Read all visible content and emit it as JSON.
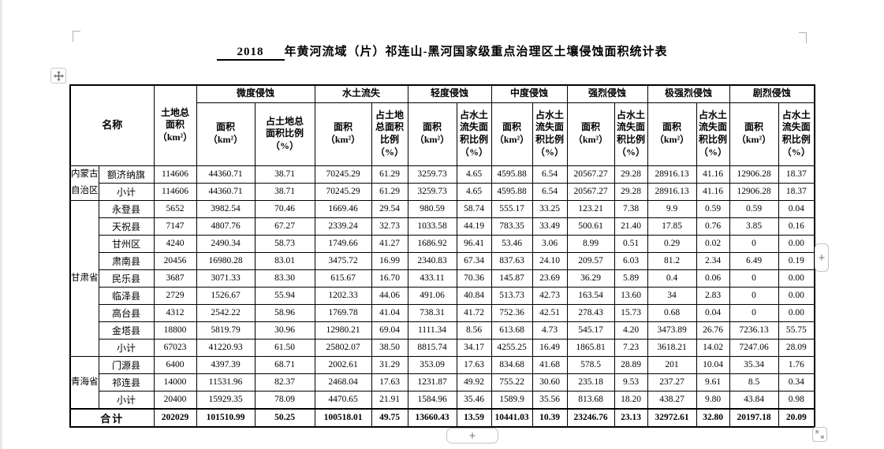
{
  "document": {
    "title_blank": "2018",
    "title_text": "年黄河流域（片）祁连山-黑河国家级重点治理区土壤侵蚀面积统计表"
  },
  "controls": {
    "add_column_label": "+",
    "add_row_label": "+",
    "move_handle_icon": "move-cross-arrows",
    "resize_handle_icon": "diagonal-resize-arrows"
  },
  "table": {
    "header": {
      "name_label": "名称",
      "land_label": "土地总\n面积\n（km²）",
      "groups": [
        {
          "label": "微度侵蚀",
          "area": "面积\n（km²）",
          "ratio": "占土地总\n面积比例\n（%）"
        },
        {
          "label": "水土流失",
          "area": "面积\n（km²）",
          "ratio": "占土地\n总面积\n比例\n（%）"
        },
        {
          "label": "轻度侵蚀",
          "area": "面积\n（km²）",
          "ratio": "占水土\n流失面\n积比例\n（%）"
        },
        {
          "label": "中度侵蚀",
          "area": "面积\n（km²）",
          "ratio": "占水土\n流失面\n积比例\n（%）"
        },
        {
          "label": "强烈侵蚀",
          "area": "面积\n（km²）",
          "ratio": "占水土\n流失面\n积比例\n（%）"
        },
        {
          "label": "极强烈侵蚀",
          "area": "面积\n（km²）",
          "ratio": "占水土\n流失面\n积比例\n（%）"
        },
        {
          "label": "剧烈侵蚀",
          "area": "面积\n（km²）",
          "ratio": "占水土\n流失面\n积比例\n（%）"
        }
      ]
    },
    "body": [
      {
        "province": "内蒙古\n自治区",
        "province_rowspan": 2,
        "county": "额济纳旗",
        "values": [
          "114606",
          "44360.71",
          "38.71",
          "70245.29",
          "61.29",
          "3259.73",
          "4.65",
          "4595.88",
          "6.54",
          "20567.27",
          "29.28",
          "28916.13",
          "41.16",
          "12906.28",
          "18.37"
        ]
      },
      {
        "county": "小计",
        "values": [
          "114606",
          "44360.71",
          "38.71",
          "70245.29",
          "61.29",
          "3259.73",
          "4.65",
          "4595.88",
          "6.54",
          "20567.27",
          "29.28",
          "28916.13",
          "41.16",
          "12906.28",
          "18.37"
        ]
      },
      {
        "province": "甘肃省",
        "province_rowspan": 9,
        "county": "永登县",
        "values": [
          "5652",
          "3982.54",
          "70.46",
          "1669.46",
          "29.54",
          "980.59",
          "58.74",
          "555.17",
          "33.25",
          "123.21",
          "7.38",
          "9.9",
          "0.59",
          "0.59",
          "0.04"
        ]
      },
      {
        "county": "天祝县",
        "values": [
          "7147",
          "4807.76",
          "67.27",
          "2339.24",
          "32.73",
          "1033.58",
          "44.19",
          "783.35",
          "33.49",
          "500.61",
          "21.40",
          "17.85",
          "0.76",
          "3.85",
          "0.16"
        ]
      },
      {
        "county": "甘州区",
        "values": [
          "4240",
          "2490.34",
          "58.73",
          "1749.66",
          "41.27",
          "1686.92",
          "96.41",
          "53.46",
          "3.06",
          "8.99",
          "0.51",
          "0.29",
          "0.02",
          "0",
          "0.00"
        ]
      },
      {
        "county": "肃南县",
        "values": [
          "20456",
          "16980.28",
          "83.01",
          "3475.72",
          "16.99",
          "2340.83",
          "67.34",
          "837.63",
          "24.10",
          "209.57",
          "6.03",
          "81.2",
          "2.34",
          "6.49",
          "0.19"
        ]
      },
      {
        "county": "民乐县",
        "values": [
          "3687",
          "3071.33",
          "83.30",
          "615.67",
          "16.70",
          "433.11",
          "70.36",
          "145.87",
          "23.69",
          "36.29",
          "5.89",
          "0.4",
          "0.06",
          "0",
          "0.00"
        ]
      },
      {
        "county": "临泽县",
        "values": [
          "2729",
          "1526.67",
          "55.94",
          "1202.33",
          "44.06",
          "491.06",
          "40.84",
          "513.73",
          "42.73",
          "163.54",
          "13.60",
          "34",
          "2.83",
          "0",
          "0.00"
        ]
      },
      {
        "county": "高台县",
        "values": [
          "4312",
          "2542.22",
          "58.96",
          "1769.78",
          "41.04",
          "738.31",
          "41.72",
          "752.36",
          "42.51",
          "278.43",
          "15.73",
          "0.68",
          "0.04",
          "0",
          "0.00"
        ]
      },
      {
        "county": "金塔县",
        "values": [
          "18800",
          "5819.79",
          "30.96",
          "12980.21",
          "69.04",
          "1111.34",
          "8.56",
          "613.68",
          "4.73",
          "545.17",
          "4.20",
          "3473.89",
          "26.76",
          "7236.13",
          "55.75"
        ]
      },
      {
        "county": "小计",
        "values": [
          "67023",
          "41220.93",
          "61.50",
          "25802.07",
          "38.50",
          "8815.74",
          "34.17",
          "4255.25",
          "16.49",
          "1865.81",
          "7.23",
          "3618.21",
          "14.02",
          "7247.06",
          "28.09"
        ]
      },
      {
        "province": "青海省",
        "province_rowspan": 3,
        "county": "门源县",
        "values": [
          "6400",
          "4397.39",
          "68.71",
          "2002.61",
          "31.29",
          "353.09",
          "17.63",
          "834.68",
          "41.68",
          "578.5",
          "28.89",
          "201",
          "10.04",
          "35.34",
          "1.76"
        ]
      },
      {
        "county": "祁连县",
        "values": [
          "14000",
          "11531.96",
          "82.37",
          "2468.04",
          "17.63",
          "1231.87",
          "49.92",
          "755.22",
          "30.60",
          "235.18",
          "9.53",
          "237.27",
          "9.61",
          "8.5",
          "0.34"
        ]
      },
      {
        "county": "小计",
        "values": [
          "20400",
          "15929.35",
          "78.09",
          "4470.65",
          "21.91",
          "1584.96",
          "35.46",
          "1589.9",
          "35.56",
          "813.68",
          "18.20",
          "438.27",
          "9.80",
          "43.84",
          "0.98"
        ]
      }
    ],
    "total": {
      "label": "合计",
      "values": [
        "202029",
        "101510.99",
        "50.25",
        "100518.01",
        "49.75",
        "13660.43",
        "13.59",
        "10441.03",
        "10.39",
        "23246.76",
        "23.13",
        "32972.61",
        "32.80",
        "20197.18",
        "20.09"
      ]
    }
  }
}
